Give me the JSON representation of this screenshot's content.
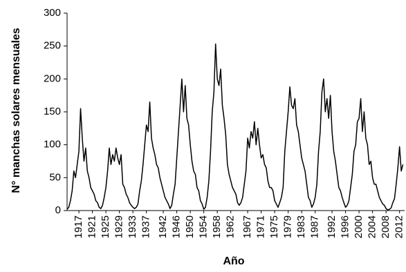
{
  "chart_data": {
    "type": "line",
    "xlabel": "Año",
    "ylabel": "N° manchas solares mensuales",
    "color": "#000000",
    "grid": false,
    "xlim": [
      1913.5,
      2013.5
    ],
    "ylim": [
      0,
      300
    ],
    "yticks": [
      0,
      50,
      100,
      150,
      200,
      250,
      300
    ],
    "xticks": [
      1917,
      1921,
      1925,
      1929,
      1933,
      1937,
      1942,
      1946,
      1950,
      1954,
      1958,
      1962,
      1967,
      1971,
      1975,
      1979,
      1983,
      1987,
      1992,
      1996,
      2000,
      2004,
      2008,
      2012
    ],
    "x": [
      1913.5,
      1914,
      1914.5,
      1915,
      1915.5,
      1916,
      1916.5,
      1917,
      1917.5,
      1918,
      1918.5,
      1919,
      1919.5,
      1920,
      1920.5,
      1921,
      1921.5,
      1922,
      1922.5,
      1923,
      1923.5,
      1924,
      1924.5,
      1925,
      1925.5,
      1926,
      1926.5,
      1927,
      1927.5,
      1928,
      1928.5,
      1929,
      1929.5,
      1930,
      1930.5,
      1931,
      1931.5,
      1932,
      1932.5,
      1933,
      1933.5,
      1934,
      1934.5,
      1935,
      1935.5,
      1936,
      1936.5,
      1937,
      1937.5,
      1938,
      1938.5,
      1939,
      1939.5,
      1940,
      1940.5,
      1941,
      1941.5,
      1942,
      1942.5,
      1943,
      1943.5,
      1944,
      1944.5,
      1945,
      1945.5,
      1946,
      1946.5,
      1947,
      1947.5,
      1948,
      1948.5,
      1949,
      1949.5,
      1950,
      1950.5,
      1951,
      1951.5,
      1952,
      1952.5,
      1953,
      1953.5,
      1954,
      1954.5,
      1955,
      1955.5,
      1956,
      1956.5,
      1957,
      1957.5,
      1958,
      1958.5,
      1959,
      1959.5,
      1960,
      1960.5,
      1961,
      1961.5,
      1962,
      1962.5,
      1963,
      1963.5,
      1964,
      1964.5,
      1965,
      1965.5,
      1966,
      1966.5,
      1967,
      1967.5,
      1968,
      1968.5,
      1969,
      1969.5,
      1970,
      1970.5,
      1971,
      1971.5,
      1972,
      1972.5,
      1973,
      1973.5,
      1974,
      1974.5,
      1975,
      1975.5,
      1976,
      1976.5,
      1977,
      1977.5,
      1978,
      1978.5,
      1979,
      1979.5,
      1980,
      1980.5,
      1981,
      1981.5,
      1982,
      1982.5,
      1983,
      1983.5,
      1984,
      1984.5,
      1985,
      1985.5,
      1986,
      1986.5,
      1987,
      1987.5,
      1988,
      1988.5,
      1989,
      1989.5,
      1990,
      1990.5,
      1991,
      1991.5,
      1992,
      1992.5,
      1993,
      1993.5,
      1994,
      1994.5,
      1995,
      1995.5,
      1996,
      1996.5,
      1997,
      1997.5,
      1998,
      1998.5,
      1999,
      1999.5,
      2000,
      2000.5,
      2001,
      2001.5,
      2002,
      2002.5,
      2003,
      2003.5,
      2004,
      2004.5,
      2005,
      2005.5,
      2006,
      2006.5,
      2007,
      2007.5,
      2008,
      2008.5,
      2009,
      2009.5,
      2010,
      2010.5,
      2011,
      2011.5,
      2012,
      2012.5,
      2013
    ],
    "values": [
      2,
      5,
      15,
      30,
      60,
      50,
      70,
      90,
      155,
      110,
      75,
      95,
      60,
      50,
      35,
      30,
      25,
      15,
      12,
      5,
      3,
      8,
      20,
      35,
      60,
      95,
      70,
      85,
      75,
      95,
      80,
      70,
      85,
      40,
      35,
      25,
      20,
      12,
      8,
      5,
      3,
      5,
      10,
      30,
      45,
      70,
      100,
      130,
      120,
      165,
      110,
      95,
      85,
      70,
      65,
      50,
      40,
      30,
      20,
      15,
      10,
      3,
      8,
      25,
      40,
      80,
      120,
      160,
      200,
      150,
      190,
      140,
      130,
      100,
      75,
      60,
      55,
      35,
      30,
      15,
      10,
      2,
      5,
      20,
      45,
      90,
      150,
      180,
      253,
      200,
      190,
      215,
      160,
      140,
      115,
      70,
      55,
      45,
      35,
      30,
      25,
      12,
      8,
      12,
      20,
      40,
      60,
      110,
      95,
      120,
      110,
      135,
      100,
      125,
      100,
      80,
      85,
      70,
      65,
      45,
      35,
      35,
      30,
      15,
      10,
      5,
      12,
      20,
      35,
      90,
      120,
      150,
      188,
      160,
      155,
      170,
      130,
      120,
      100,
      80,
      70,
      60,
      40,
      20,
      15,
      5,
      10,
      20,
      40,
      90,
      120,
      180,
      200,
      150,
      170,
      140,
      175,
      120,
      90,
      75,
      55,
      35,
      30,
      20,
      12,
      5,
      8,
      15,
      35,
      55,
      90,
      100,
      135,
      140,
      170,
      120,
      150,
      110,
      100,
      70,
      75,
      50,
      40,
      40,
      30,
      20,
      15,
      10,
      8,
      3,
      1,
      2,
      4,
      12,
      18,
      40,
      65,
      97,
      60,
      70
    ]
  }
}
